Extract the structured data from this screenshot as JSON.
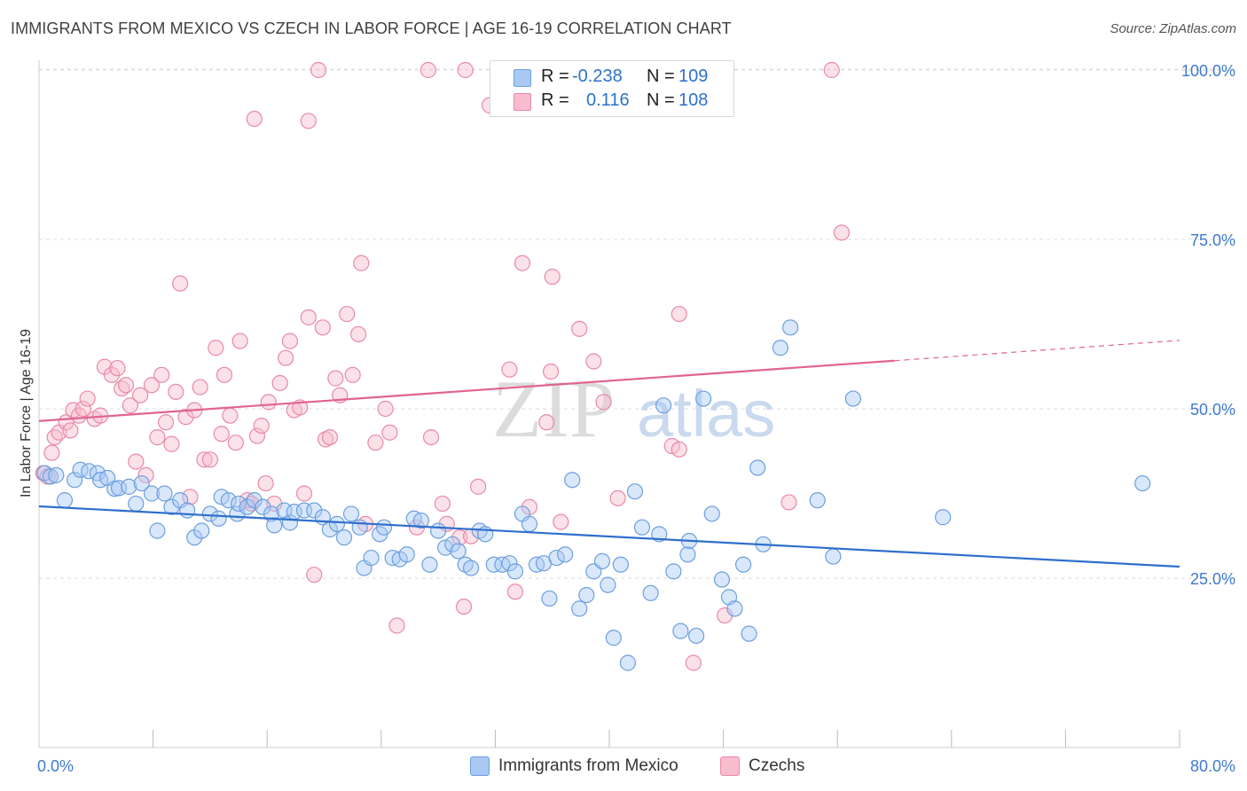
{
  "header": {
    "title": "IMMIGRANTS FROM MEXICO VS CZECH IN LABOR FORCE | AGE 16-19 CORRELATION CHART",
    "source": "Source: ZipAtlas.com"
  },
  "watermark": {
    "zip": "ZIP",
    "atlas": "atlas"
  },
  "legend_stats": {
    "rows": [
      {
        "r_label": "R =",
        "r_value": "-0.238",
        "n_label": "N =",
        "n_value": "109"
      },
      {
        "r_label": "R =",
        "r_value": "0.116",
        "n_label": "N =",
        "n_value": "108"
      }
    ]
  },
  "bottom_legend": {
    "series_a": "Immigrants from Mexico",
    "series_b": "Czechs"
  },
  "colors": {
    "blue_fill": "#a9c9f3",
    "blue_stroke": "#6d9fde",
    "blue_line": "#2e6fcc",
    "pink_fill": "#f7bccd",
    "pink_stroke": "#e98aa8",
    "pink_line": "#e0648f",
    "axis_text": "#3d7ad1"
  },
  "chart_data": {
    "type": "scatter",
    "title": "IMMIGRANTS FROM MEXICO VS CZECH IN LABOR FORCE | AGE 16-19 CORRELATION CHART",
    "xlabel": "",
    "ylabel": "In Labor Force | Age 16-19",
    "xlim": [
      0,
      80
    ],
    "ylim": [
      0,
      105
    ],
    "x_tick_labels": [
      "0.0%",
      "80.0%"
    ],
    "y_ticks": [
      25,
      50,
      75,
      100
    ],
    "y_tick_labels": [
      "25.0%",
      "50.0%",
      "75.0%",
      "100.0%"
    ],
    "grid": true,
    "legend_position": "top-center",
    "series": [
      {
        "name": "Immigrants from Mexico",
        "color": "#a9c9f3",
        "trend": {
          "x": [
            0,
            80
          ],
          "y": [
            35.6,
            26.7
          ]
        },
        "points": [
          [
            0.4,
            40.5
          ],
          [
            0.8,
            40
          ],
          [
            1.2,
            40.2
          ],
          [
            1.8,
            36.5
          ],
          [
            2.5,
            39.5
          ],
          [
            2.9,
            41
          ],
          [
            3.5,
            40.8
          ],
          [
            4.1,
            40.5
          ],
          [
            4.3,
            39.5
          ],
          [
            4.8,
            39.8
          ],
          [
            5.3,
            38.2
          ],
          [
            5.6,
            38.3
          ],
          [
            6.3,
            38.5
          ],
          [
            6.8,
            36
          ],
          [
            7.2,
            39
          ],
          [
            7.9,
            37.5
          ],
          [
            8.3,
            32
          ],
          [
            8.8,
            37.5
          ],
          [
            9.3,
            35.5
          ],
          [
            9.9,
            36.5
          ],
          [
            10.4,
            35
          ],
          [
            10.9,
            31
          ],
          [
            11.4,
            32
          ],
          [
            12.0,
            34.5
          ],
          [
            12.6,
            33.8
          ],
          [
            12.8,
            37
          ],
          [
            13.3,
            36.5
          ],
          [
            13.9,
            34.5
          ],
          [
            14.0,
            36
          ],
          [
            14.6,
            35.5
          ],
          [
            15.1,
            36.5
          ],
          [
            15.7,
            35.5
          ],
          [
            16.3,
            34.5
          ],
          [
            16.5,
            32.8
          ],
          [
            17.2,
            35
          ],
          [
            17.6,
            33.2
          ],
          [
            17.9,
            34.8
          ],
          [
            18.6,
            35
          ],
          [
            19.3,
            35
          ],
          [
            19.9,
            34
          ],
          [
            20.4,
            32.2
          ],
          [
            20.9,
            33
          ],
          [
            21.4,
            31
          ],
          [
            21.9,
            34.5
          ],
          [
            22.5,
            32.5
          ],
          [
            22.8,
            26.5
          ],
          [
            23.3,
            28
          ],
          [
            23.9,
            31.5
          ],
          [
            24.2,
            32.5
          ],
          [
            24.8,
            28
          ],
          [
            25.3,
            27.8
          ],
          [
            25.8,
            28.5
          ],
          [
            26.3,
            33.8
          ],
          [
            26.8,
            33.5
          ],
          [
            27.4,
            27
          ],
          [
            28.0,
            32
          ],
          [
            28.5,
            29.5
          ],
          [
            29.0,
            30
          ],
          [
            29.4,
            29
          ],
          [
            29.9,
            27
          ],
          [
            30.3,
            26.5
          ],
          [
            30.9,
            32
          ],
          [
            31.3,
            31.5
          ],
          [
            31.9,
            27
          ],
          [
            32.5,
            27
          ],
          [
            33.0,
            27.2
          ],
          [
            33.4,
            26
          ],
          [
            33.9,
            34.5
          ],
          [
            34.4,
            33
          ],
          [
            34.9,
            27
          ],
          [
            35.4,
            27.2
          ],
          [
            35.8,
            22
          ],
          [
            36.3,
            28
          ],
          [
            36.9,
            28.5
          ],
          [
            37.4,
            39.5
          ],
          [
            37.9,
            20.5
          ],
          [
            38.4,
            22.5
          ],
          [
            38.9,
            26
          ],
          [
            39.5,
            27.5
          ],
          [
            39.9,
            24
          ],
          [
            40.3,
            16.2
          ],
          [
            40.8,
            27
          ],
          [
            41.3,
            12.5
          ],
          [
            41.8,
            37.8
          ],
          [
            42.3,
            32.5
          ],
          [
            42.9,
            22.8
          ],
          [
            43.5,
            31.5
          ],
          [
            43.8,
            50.5
          ],
          [
            44.5,
            26
          ],
          [
            45.0,
            17.2
          ],
          [
            45.5,
            28.5
          ],
          [
            45.6,
            30.5
          ],
          [
            46.1,
            16.5
          ],
          [
            46.6,
            51.5
          ],
          [
            47.2,
            34.5
          ],
          [
            47.9,
            24.8
          ],
          [
            48.4,
            22.2
          ],
          [
            48.8,
            20.5
          ],
          [
            49.4,
            27
          ],
          [
            49.8,
            16.8
          ],
          [
            50.4,
            41.3
          ],
          [
            50.8,
            30
          ],
          [
            52.0,
            59
          ],
          [
            52.7,
            62
          ],
          [
            54.6,
            36.5
          ],
          [
            55.7,
            28.2
          ],
          [
            57.1,
            51.5
          ],
          [
            63.4,
            34
          ],
          [
            77.4,
            39
          ]
        ]
      },
      {
        "name": "Czechs",
        "color": "#f7bccd",
        "trend": {
          "x": [
            0,
            60,
            80
          ],
          "y": [
            48.2,
            57.1,
            60.1
          ]
        },
        "points": [
          [
            0.3,
            40.5
          ],
          [
            0.6,
            40
          ],
          [
            0.9,
            43.5
          ],
          [
            1.1,
            45.8
          ],
          [
            1.4,
            46.5
          ],
          [
            1.9,
            48
          ],
          [
            2.4,
            49.8
          ],
          [
            2.8,
            49
          ],
          [
            3.1,
            50
          ],
          [
            3.4,
            51.5
          ],
          [
            3.9,
            48.5
          ],
          [
            4.3,
            49
          ],
          [
            4.6,
            56.2
          ],
          [
            5.1,
            55
          ],
          [
            5.5,
            56
          ],
          [
            5.8,
            53
          ],
          [
            6.1,
            53.5
          ],
          [
            6.4,
            50.5
          ],
          [
            6.8,
            42.2
          ],
          [
            7.1,
            52
          ],
          [
            7.5,
            40.2
          ],
          [
            7.9,
            53.5
          ],
          [
            8.3,
            45.8
          ],
          [
            8.6,
            55
          ],
          [
            8.9,
            48
          ],
          [
            9.3,
            44.8
          ],
          [
            9.6,
            52.5
          ],
          [
            9.9,
            68.5
          ],
          [
            10.3,
            48.8
          ],
          [
            10.6,
            37
          ],
          [
            10.9,
            49.8
          ],
          [
            11.3,
            53.2
          ],
          [
            11.6,
            42.5
          ],
          [
            12.0,
            42.5
          ],
          [
            12.4,
            59
          ],
          [
            12.8,
            46.3
          ],
          [
            13.0,
            55
          ],
          [
            13.4,
            49
          ],
          [
            13.8,
            45
          ],
          [
            14.1,
            60
          ],
          [
            14.6,
            36.5
          ],
          [
            14.9,
            36
          ],
          [
            15.3,
            46
          ],
          [
            15.6,
            47.5
          ],
          [
            15.9,
            39
          ],
          [
            16.1,
            51
          ],
          [
            16.5,
            36
          ],
          [
            16.9,
            53.8
          ],
          [
            17.3,
            57.5
          ],
          [
            17.6,
            60
          ],
          [
            17.9,
            49.8
          ],
          [
            18.3,
            50.2
          ],
          [
            18.6,
            37.5
          ],
          [
            18.9,
            63.5
          ],
          [
            19.3,
            25.5
          ],
          [
            19.9,
            62
          ],
          [
            20.1,
            45.5
          ],
          [
            20.4,
            45.8
          ],
          [
            20.8,
            54.5
          ],
          [
            21.1,
            52
          ],
          [
            21.6,
            64
          ],
          [
            22.0,
            55
          ],
          [
            22.4,
            61
          ],
          [
            22.6,
            71.5
          ],
          [
            22.9,
            33
          ],
          [
            23.6,
            45
          ],
          [
            24.3,
            50
          ],
          [
            24.6,
            46.5
          ],
          [
            25.1,
            18
          ],
          [
            26.5,
            32.5
          ],
          [
            27.5,
            45.8
          ],
          [
            28.3,
            36
          ],
          [
            28.6,
            33
          ],
          [
            29.5,
            31
          ],
          [
            29.8,
            20.8
          ],
          [
            30.3,
            31.2
          ],
          [
            30.8,
            38.5
          ],
          [
            31.6,
            94.8
          ],
          [
            33.0,
            55.8
          ],
          [
            33.4,
            23
          ],
          [
            33.9,
            71.5
          ],
          [
            34.4,
            35.5
          ],
          [
            35.6,
            48
          ],
          [
            35.9,
            55.5
          ],
          [
            36.0,
            69.5
          ],
          [
            36.6,
            33.3
          ],
          [
            37.9,
            61.8
          ],
          [
            38.9,
            57
          ],
          [
            39.6,
            51
          ],
          [
            40.6,
            36.8
          ],
          [
            42.4,
            100
          ],
          [
            44.4,
            44.5
          ],
          [
            44.9,
            64
          ],
          [
            44.9,
            44
          ],
          [
            45.9,
            12.5
          ],
          [
            48.1,
            19.5
          ],
          [
            52.6,
            36.2
          ],
          [
            56.3,
            76
          ],
          [
            18.9,
            92.5
          ],
          [
            19.6,
            100
          ],
          [
            27.3,
            100
          ],
          [
            29.9,
            100
          ],
          [
            35.9,
            100
          ],
          [
            37.5,
            100
          ],
          [
            41.1,
            100
          ],
          [
            55.6,
            100
          ],
          [
            15.1,
            92.8
          ],
          [
            2.2,
            46.8
          ]
        ]
      }
    ]
  }
}
